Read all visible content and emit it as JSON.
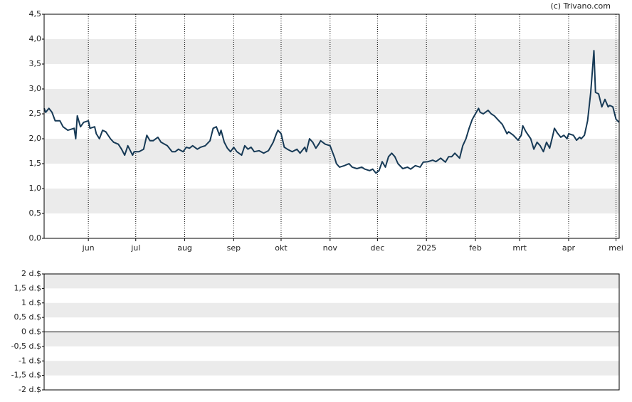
{
  "chart_data": [
    {
      "type": "line",
      "credit": "(c) Trivano.com",
      "x": [
        2,
        3,
        5,
        7,
        9,
        12,
        14,
        17,
        21,
        22,
        23,
        25,
        27,
        30,
        31,
        34,
        35,
        37,
        39,
        41,
        44,
        46,
        49,
        51,
        53,
        55,
        58,
        59,
        62,
        65,
        67,
        69,
        71,
        74,
        76,
        80,
        83,
        85,
        87,
        90,
        92,
        94,
        96,
        99,
        101,
        104,
        107,
        109,
        111,
        113,
        114,
        116,
        118,
        120,
        122,
        124,
        127,
        129,
        131,
        133,
        135,
        138,
        141,
        144,
        147,
        149,
        150,
        152,
        154,
        156,
        159,
        162,
        164,
        167,
        168,
        170,
        172,
        174,
        176,
        177,
        180,
        183,
        186,
        187,
        189,
        192,
        195,
        197,
        200,
        203,
        205,
        208,
        210,
        212,
        214,
        216,
        218,
        220,
        222,
        224,
        226,
        229,
        232,
        234,
        237,
        240,
        242,
        245,
        248,
        250,
        253,
        256,
        258,
        260,
        262,
        265,
        267,
        269,
        271,
        273,
        275,
        277,
        278,
        280,
        283,
        285,
        287,
        289,
        292,
        295,
        296,
        299,
        302,
        304,
        305,
        307,
        310,
        312,
        314,
        316,
        318,
        320,
        322,
        324,
        325,
        327,
        329,
        331,
        333,
        334,
        337,
        339,
        341,
        342,
        344,
        346,
        348,
        350,
        351,
        353,
        355,
        357,
        359,
        360,
        362,
        364,
        366
      ],
      "series": [
        {
          "color": "#173a56",
          "values": [
            2.61,
            2.53,
            2.61,
            2.53,
            2.36,
            2.36,
            2.24,
            2.17,
            2.21,
            2.0,
            2.46,
            2.24,
            2.33,
            2.36,
            2.21,
            2.24,
            2.1,
            2.0,
            2.17,
            2.14,
            2.0,
            1.93,
            1.89,
            1.79,
            1.67,
            1.86,
            1.67,
            1.74,
            1.74,
            1.79,
            2.07,
            1.96,
            1.96,
            2.03,
            1.93,
            1.86,
            1.74,
            1.74,
            1.79,
            1.74,
            1.83,
            1.81,
            1.86,
            1.79,
            1.83,
            1.86,
            1.96,
            2.21,
            2.24,
            2.07,
            2.17,
            1.93,
            1.81,
            1.74,
            1.83,
            1.74,
            1.67,
            1.86,
            1.79,
            1.83,
            1.74,
            1.76,
            1.71,
            1.76,
            1.93,
            2.1,
            2.17,
            2.1,
            1.83,
            1.79,
            1.74,
            1.79,
            1.71,
            1.83,
            1.74,
            2.0,
            1.93,
            1.81,
            1.9,
            1.96,
            1.89,
            1.86,
            1.61,
            1.5,
            1.43,
            1.46,
            1.5,
            1.43,
            1.4,
            1.43,
            1.39,
            1.36,
            1.39,
            1.31,
            1.36,
            1.54,
            1.43,
            1.64,
            1.71,
            1.64,
            1.5,
            1.4,
            1.43,
            1.39,
            1.46,
            1.43,
            1.53,
            1.54,
            1.57,
            1.54,
            1.61,
            1.53,
            1.64,
            1.64,
            1.71,
            1.61,
            1.86,
            2.0,
            2.21,
            2.39,
            2.5,
            2.61,
            2.53,
            2.5,
            2.57,
            2.5,
            2.46,
            2.39,
            2.29,
            2.1,
            2.14,
            2.07,
            1.97,
            2.07,
            2.26,
            2.14,
            2.0,
            1.79,
            1.93,
            1.86,
            1.74,
            1.93,
            1.81,
            2.07,
            2.21,
            2.11,
            2.03,
            2.07,
            2.0,
            2.1,
            2.07,
            1.97,
            2.03,
            2.0,
            2.07,
            2.36,
            2.93,
            3.77,
            2.93,
            2.9,
            2.64,
            2.79,
            2.64,
            2.67,
            2.64,
            2.39,
            2.33
          ]
        }
      ],
      "xlim": [
        2,
        366
      ],
      "xticks": [
        {
          "value": 30,
          "label": "jun"
        },
        {
          "value": 60,
          "label": "jul"
        },
        {
          "value": 91,
          "label": "aug"
        },
        {
          "value": 122,
          "label": "sep"
        },
        {
          "value": 152,
          "label": "okt"
        },
        {
          "value": 183,
          "label": "nov"
        },
        {
          "value": 213,
          "label": "dec"
        },
        {
          "value": 244,
          "label": "2025"
        },
        {
          "value": 275,
          "label": "feb"
        },
        {
          "value": 303,
          "label": "mrt"
        },
        {
          "value": 334,
          "label": "apr"
        },
        {
          "value": 364,
          "label": "mei"
        }
      ],
      "ylim": [
        0,
        4.5
      ],
      "yticks": [
        {
          "value": 0,
          "label": "0,0"
        },
        {
          "value": 0.5,
          "label": "0,5"
        },
        {
          "value": 1,
          "label": "1,0"
        },
        {
          "value": 1.5,
          "label": "1,5"
        },
        {
          "value": 2,
          "label": "2,0"
        },
        {
          "value": 2.5,
          "label": "2,5"
        },
        {
          "value": 3,
          "label": "3,0"
        },
        {
          "value": 3.5,
          "label": "3,5"
        },
        {
          "value": 4,
          "label": "4,0"
        },
        {
          "value": 4.5,
          "label": "4,5"
        }
      ]
    },
    {
      "type": "bar",
      "ylim": [
        -2,
        2
      ],
      "yticks": [
        {
          "value": -2,
          "label": "-2 d.$"
        },
        {
          "value": -1.5,
          "label": "-1,5 d.$"
        },
        {
          "value": -1,
          "label": "-1 d.$"
        },
        {
          "value": -0.5,
          "label": "-0,5 d.$"
        },
        {
          "value": 0,
          "label": "0 d.$"
        },
        {
          "value": 0.5,
          "label": "0,5 d.$"
        },
        {
          "value": 1,
          "label": "1 d.$"
        },
        {
          "value": 1.5,
          "label": "1,5 d.$"
        },
        {
          "value": 2,
          "label": "2 d.$"
        }
      ]
    }
  ]
}
